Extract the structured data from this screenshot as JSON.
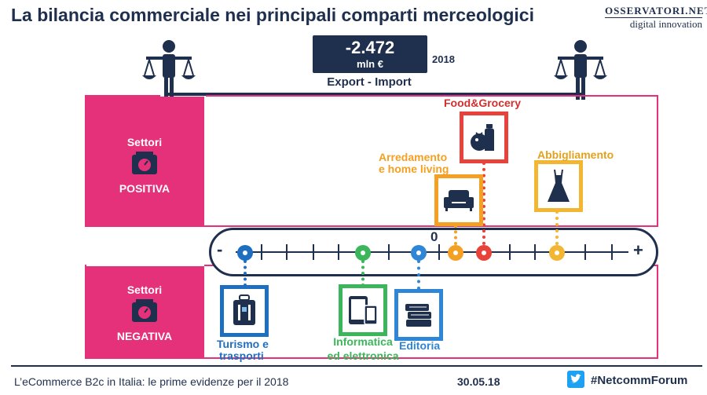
{
  "header": {
    "title": "La bilancia commerciale nei principali comparti merceologici",
    "logo_top": "OSSERVATORI.NET",
    "logo_bottom": "digital innovation"
  },
  "balance": {
    "value": "-2.472",
    "unit": "mln €",
    "year": "2018",
    "label": "Export - Import"
  },
  "panels": {
    "positive": {
      "line1": "Settori",
      "line2": "POSITIVA"
    },
    "negative": {
      "line1": "Settori",
      "line2": "NEGATIVA"
    }
  },
  "axis": {
    "minus": "-",
    "plus": "+",
    "zero": "0"
  },
  "categories": [
    {
      "id": "turismo",
      "label1": "Turismo e",
      "label2": "trasporti",
      "color": "#1f6fc0",
      "icon": "luggage-icon"
    },
    {
      "id": "informatica",
      "label1": "Informatica",
      "label2": "ed elettronica",
      "color": "#3cb65a",
      "icon": "devices-icon"
    },
    {
      "id": "editoria",
      "label1": "Editoria",
      "label2": "",
      "color": "#2f86d6",
      "icon": "books-icon"
    },
    {
      "id": "arredamento",
      "label1": "Arredamento",
      "label2": "e home living",
      "color": "#f4a023",
      "icon": "sofa-icon"
    },
    {
      "id": "food",
      "label1": "Food&Grocery",
      "label2": "",
      "color": "#e8423a",
      "icon": "grocery-icon"
    },
    {
      "id": "abbigliamento",
      "label1": "Abbigliamento",
      "label2": "",
      "color": "#f2b632",
      "icon": "dress-icon"
    }
  ],
  "footer": {
    "left": "L’eCommerce B2c in Italia: le prime evidenze per il 2018",
    "date": "30.05.18",
    "hashtag": "#NetcommForum",
    "twitter_icon": "twitter-icon"
  }
}
